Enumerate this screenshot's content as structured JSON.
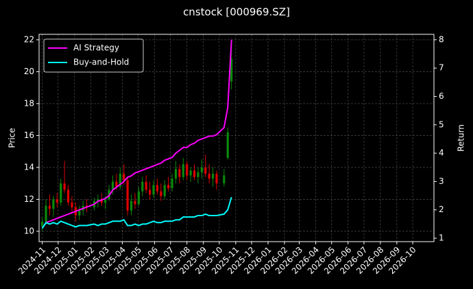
{
  "chart_data": {
    "type": "candlestick",
    "title": "cnstock [000969.SZ]",
    "ylabel": "Price",
    "y2label": "Return",
    "x": [
      "2024-11-01",
      "2024-11-08",
      "2024-11-15",
      "2024-11-22",
      "2024-11-29",
      "2024-12-06",
      "2024-12-13",
      "2024-12-20",
      "2024-12-27",
      "2025-01-03",
      "2025-01-10",
      "2025-01-17",
      "2025-01-24",
      "2025-02-07",
      "2025-02-14",
      "2025-02-21",
      "2025-02-28",
      "2025-03-07",
      "2025-03-14",
      "2025-03-21",
      "2025-03-28",
      "2025-04-04",
      "2025-04-11",
      "2025-04-18",
      "2025-04-25",
      "2025-05-02",
      "2025-05-09",
      "2025-05-16",
      "2025-05-23",
      "2025-05-30",
      "2025-06-06",
      "2025-06-13",
      "2025-06-20",
      "2025-06-27",
      "2025-07-04",
      "2025-07-11",
      "2025-07-18",
      "2025-07-25",
      "2025-08-01",
      "2025-08-08",
      "2025-08-15",
      "2025-08-22",
      "2025-08-29",
      "2025-09-05",
      "2025-09-12",
      "2025-09-19",
      "2025-09-26",
      "2025-10-10",
      "2025-10-17",
      "2025-10-24"
    ],
    "open": [
      10.3,
      10.6,
      11.6,
      11.4,
      12.0,
      11.8,
      13.0,
      12.6,
      11.8,
      11.5,
      11.0,
      11.3,
      11.6,
      11.5,
      11.9,
      12.0,
      11.8,
      12.0,
      12.6,
      13.1,
      12.8,
      13.6,
      13.2,
      11.3,
      11.9,
      11.7,
      12.5,
      13.1,
      12.6,
      12.3,
      12.9,
      12.5,
      12.2,
      12.9,
      12.7,
      13.3,
      13.9,
      13.4,
      14.2,
      13.5,
      13.8,
      13.4,
      13.7,
      14.0,
      13.6,
      13.3,
      13.6,
      13.0,
      14.6,
      19.4
    ],
    "high": [
      10.9,
      12.0,
      12.3,
      12.2,
      12.4,
      13.3,
      14.4,
      12.9,
      12.2,
      11.8,
      11.6,
      11.9,
      12.0,
      12.1,
      12.3,
      12.4,
      12.2,
      12.9,
      13.5,
      13.6,
      14.0,
      14.2,
      13.4,
      12.3,
      12.4,
      12.8,
      13.4,
      13.5,
      13.1,
      13.2,
      13.3,
      13.0,
      13.2,
      13.4,
      13.6,
      14.4,
      14.2,
      14.6,
      14.4,
      14.0,
      14.2,
      14.0,
      14.5,
      14.8,
      14.2,
      14.0,
      13.8,
      13.9,
      16.5,
      21.7
    ],
    "low": [
      10.0,
      10.4,
      11.0,
      10.9,
      11.5,
      11.6,
      12.4,
      11.6,
      11.2,
      10.6,
      10.7,
      11.0,
      11.2,
      11.3,
      11.5,
      11.6,
      11.4,
      11.9,
      12.3,
      12.6,
      12.6,
      12.9,
      11.0,
      11.0,
      11.4,
      11.6,
      12.2,
      12.4,
      12.0,
      12.1,
      12.3,
      11.9,
      12.0,
      12.5,
      12.5,
      13.0,
      13.0,
      13.2,
      13.2,
      13.1,
      13.2,
      13.0,
      13.3,
      13.4,
      13.0,
      12.8,
      12.6,
      12.8,
      14.5,
      18.9
    ],
    "close": [
      10.6,
      11.6,
      11.4,
      12.0,
      11.8,
      13.0,
      12.6,
      11.8,
      11.5,
      11.0,
      11.3,
      11.6,
      11.5,
      11.9,
      12.0,
      11.8,
      12.0,
      12.6,
      13.1,
      12.8,
      13.6,
      13.2,
      11.3,
      11.9,
      11.7,
      12.5,
      13.1,
      12.6,
      12.3,
      12.9,
      12.5,
      12.2,
      12.9,
      12.7,
      13.3,
      13.9,
      13.4,
      14.2,
      13.5,
      13.8,
      13.4,
      13.7,
      14.0,
      13.6,
      13.3,
      13.6,
      13.0,
      13.5,
      16.2,
      20.8
    ],
    "up_color": "#0a8a0a",
    "down_color": "#e00000",
    "series": [
      {
        "name": "AI Strategy",
        "color": "#ff00ff",
        "axis": "y2",
        "values": [
          1.35,
          1.55,
          1.6,
          1.65,
          1.7,
          1.75,
          1.8,
          1.85,
          1.9,
          1.95,
          2.0,
          2.05,
          2.1,
          2.2,
          2.3,
          2.35,
          2.4,
          2.5,
          2.7,
          2.8,
          2.9,
          3.0,
          3.15,
          3.2,
          3.3,
          3.35,
          3.4,
          3.45,
          3.5,
          3.55,
          3.6,
          3.65,
          3.75,
          3.8,
          3.85,
          4.0,
          4.1,
          4.2,
          4.2,
          4.3,
          4.35,
          4.45,
          4.5,
          4.55,
          4.6,
          4.6,
          4.65,
          4.9,
          5.6,
          8.0
        ]
      },
      {
        "name": "Buy-and-Hold",
        "color": "#00ffff",
        "axis": "y2",
        "values": [
          1.35,
          1.55,
          1.5,
          1.55,
          1.5,
          1.6,
          1.55,
          1.5,
          1.45,
          1.4,
          1.45,
          1.45,
          1.45,
          1.5,
          1.45,
          1.5,
          1.5,
          1.55,
          1.6,
          1.6,
          1.6,
          1.65,
          1.45,
          1.45,
          1.5,
          1.45,
          1.5,
          1.5,
          1.55,
          1.6,
          1.55,
          1.55,
          1.6,
          1.6,
          1.6,
          1.65,
          1.65,
          1.75,
          1.75,
          1.75,
          1.75,
          1.8,
          1.8,
          1.85,
          1.8,
          1.8,
          1.8,
          1.85,
          2.0,
          2.45
        ]
      }
    ],
    "xlim": [
      "2024-10-26",
      "2026-11-10"
    ],
    "xticks": [
      "2024-11",
      "2024-12",
      "2025-01",
      "2025-02",
      "2025-03",
      "2025-04",
      "2025-05",
      "2025-06",
      "2025-07",
      "2025-08",
      "2025-09",
      "2025-10",
      "2025-11",
      "2025-12",
      "2026-01",
      "2026-02",
      "2026-03",
      "2026-04",
      "2026-05",
      "2026-06",
      "2026-07",
      "2026-08",
      "2026-09",
      "2026-10"
    ],
    "ylim": [
      9.35,
      22.34
    ],
    "yticks": [
      10,
      12,
      14,
      16,
      18,
      20,
      22
    ],
    "y2lim": [
      0.88,
      8.19
    ],
    "y2ticks": [
      1,
      2,
      3,
      4,
      5,
      6,
      7,
      8
    ],
    "grid": true,
    "legend": "upper left"
  }
}
